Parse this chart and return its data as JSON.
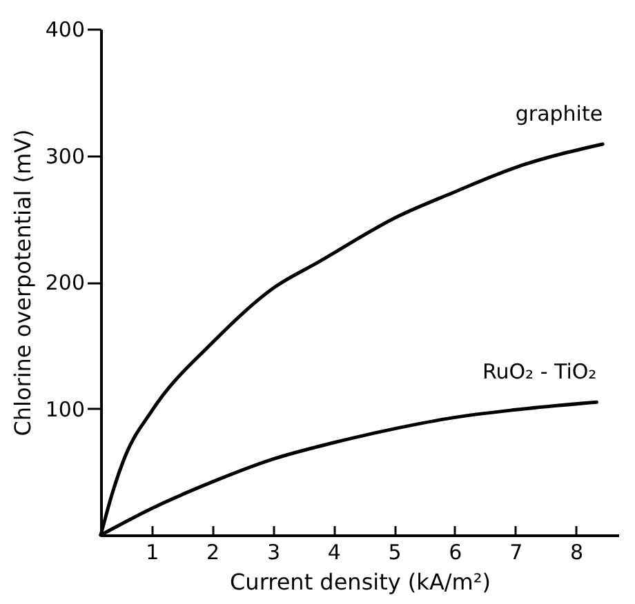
{
  "chart_data": {
    "type": "line",
    "xlabel": "Current density (kA/m²)",
    "ylabel": "Chlorine overpotential (mV)",
    "xlim": [
      0.16,
      8.7
    ],
    "ylim": [
      0,
      400
    ],
    "xticks": [
      1,
      2,
      3,
      4,
      5,
      6,
      7,
      8
    ],
    "yticks": [
      100,
      200,
      300,
      400
    ],
    "legend": false,
    "grid": false,
    "marker": "none",
    "line_style": "solid",
    "series": [
      {
        "name": "graphite",
        "color": "#000000",
        "x": [
          0.16,
          0.35,
          0.56,
          1.0,
          2.0,
          3.0,
          3.76,
          5.07,
          5.94,
          7.03,
          8.44
        ],
        "values": [
          0,
          33,
          62,
          98,
          152,
          195,
          216,
          252,
          270,
          291,
          309
        ]
      },
      {
        "name": "RuO₂ - TiO₂",
        "color": "#000000",
        "x": [
          0.16,
          1.0,
          2.0,
          3.0,
          4.0,
          5.0,
          6.0,
          7.0,
          8.34
        ],
        "values": [
          0,
          21,
          42,
          60,
          73,
          84,
          93,
          99,
          105
        ]
      }
    ]
  }
}
